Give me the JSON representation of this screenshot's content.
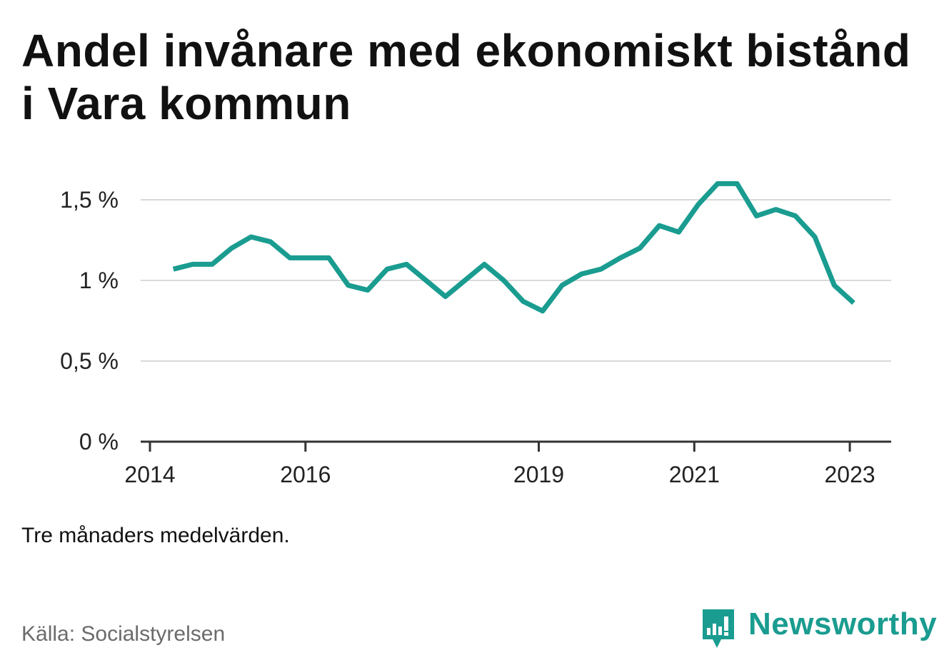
{
  "title": "Andel invånare med ekonomiskt bistånd i Vara kommun",
  "note": "Tre månaders medelvärden.",
  "source": "Källa: Socialstyrelsen",
  "brand": {
    "name": "Newsworthy",
    "color": "#1a9c90"
  },
  "chart_data": {
    "type": "line",
    "title": "Andel invånare med ekonomiskt bistånd i Vara kommun",
    "xlabel": "",
    "ylabel": "",
    "x_range": [
      2014.0,
      2023.4
    ],
    "y_range": [
      0,
      1.75
    ],
    "y_ticks": [
      {
        "value": 0,
        "label": "0 %"
      },
      {
        "value": 0.5,
        "label": "0,5 %"
      },
      {
        "value": 1.0,
        "label": "1 %"
      },
      {
        "value": 1.5,
        "label": "1,5 %"
      }
    ],
    "x_ticks": [
      {
        "value": 2014,
        "label": "2014"
      },
      {
        "value": 2016,
        "label": "2016"
      },
      {
        "value": 2019,
        "label": "2019"
      },
      {
        "value": 2021,
        "label": "2021"
      },
      {
        "value": 2023,
        "label": "2023"
      }
    ],
    "grid": true,
    "line_color": "#1a9c90",
    "series": [
      {
        "x": [
          2014.3,
          2014.55,
          2014.8,
          2015.05,
          2015.3,
          2015.55,
          2015.8,
          2016.05,
          2016.3,
          2016.55,
          2016.8,
          2017.05,
          2017.3,
          2017.55,
          2017.8,
          2018.05,
          2018.3,
          2018.55,
          2018.8,
          2019.05,
          2019.3,
          2019.55,
          2019.8,
          2020.05,
          2020.3,
          2020.55,
          2020.8,
          2021.05,
          2021.3,
          2021.55,
          2021.8,
          2022.05,
          2022.3,
          2022.55,
          2022.8,
          2023.05
        ],
        "values": [
          1.07,
          1.1,
          1.1,
          1.2,
          1.27,
          1.24,
          1.14,
          1.14,
          1.14,
          0.97,
          0.94,
          1.07,
          1.1,
          1.0,
          0.9,
          1.0,
          1.1,
          1.0,
          0.87,
          0.81,
          0.97,
          1.04,
          1.07,
          1.14,
          1.2,
          1.34,
          1.3,
          1.47,
          1.6,
          1.6,
          1.4,
          1.44,
          1.4,
          1.27,
          0.97,
          0.86
        ]
      }
    ]
  }
}
